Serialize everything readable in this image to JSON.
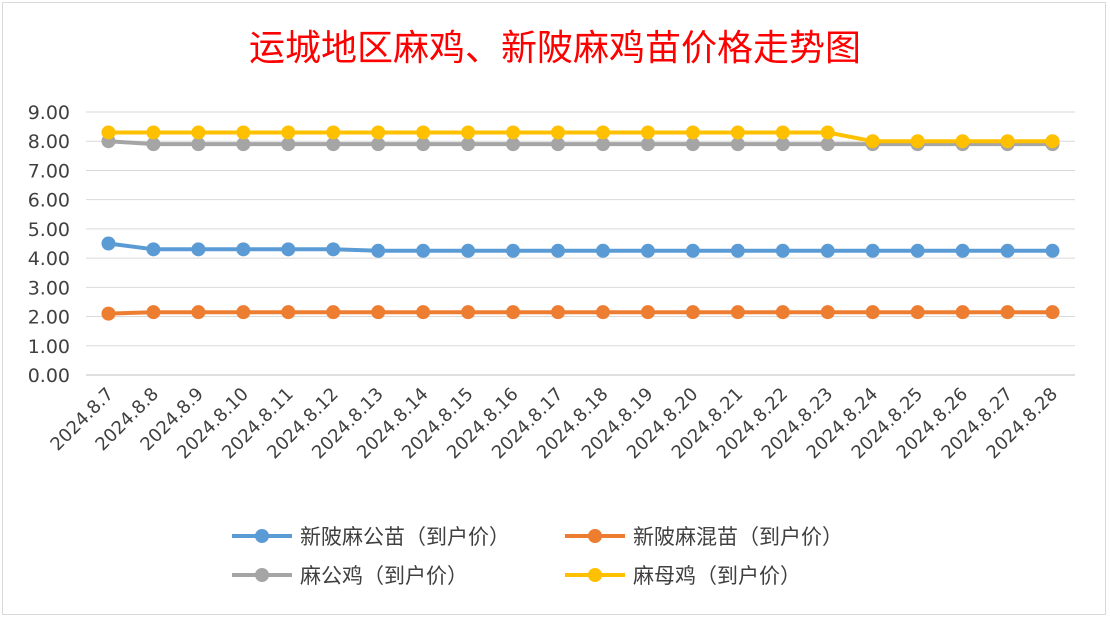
{
  "chart_data": {
    "type": "line",
    "title": "运城地区麻鸡、新陂麻鸡苗价格走势图",
    "xlabel": "",
    "ylabel": "",
    "ylim": [
      0,
      9
    ],
    "ytick_step": 1,
    "ytick_format": "0.00",
    "grid": true,
    "legend_position": "bottom",
    "categories": [
      "2024.8.7",
      "2024.8.8",
      "2024.8.9",
      "2024.8.10",
      "2024.8.11",
      "2024.8.12",
      "2024.8.13",
      "2024.8.14",
      "2024.8.15",
      "2024.8.16",
      "2024.8.17",
      "2024.8.18",
      "2024.8.19",
      "2024.8.20",
      "2024.8.21",
      "2024.8.22",
      "2024.8.23",
      "2024.8.24",
      "2024.8.25",
      "2024.8.26",
      "2024.8.27",
      "2024.8.28"
    ],
    "series": [
      {
        "name": "新陂麻公苗（到户价）",
        "color": "#5b9bd5",
        "values": [
          4.5,
          4.3,
          4.3,
          4.3,
          4.3,
          4.3,
          4.25,
          4.25,
          4.25,
          4.25,
          4.25,
          4.25,
          4.25,
          4.25,
          4.25,
          4.25,
          4.25,
          4.25,
          4.25,
          4.25,
          4.25,
          4.25
        ]
      },
      {
        "name": "新陂麻混苗（到户价）",
        "color": "#ed7d31",
        "values": [
          2.1,
          2.15,
          2.15,
          2.15,
          2.15,
          2.15,
          2.15,
          2.15,
          2.15,
          2.15,
          2.15,
          2.15,
          2.15,
          2.15,
          2.15,
          2.15,
          2.15,
          2.15,
          2.15,
          2.15,
          2.15,
          2.15
        ]
      },
      {
        "name": "麻公鸡（到户价）",
        "color": "#a5a5a5",
        "values": [
          8.0,
          7.9,
          7.9,
          7.9,
          7.9,
          7.9,
          7.9,
          7.9,
          7.9,
          7.9,
          7.9,
          7.9,
          7.9,
          7.9,
          7.9,
          7.9,
          7.9,
          7.9,
          7.9,
          7.9,
          7.9,
          7.9
        ]
      },
      {
        "name": "麻母鸡（到户价）",
        "color": "#ffc000",
        "values": [
          8.3,
          8.3,
          8.3,
          8.3,
          8.3,
          8.3,
          8.3,
          8.3,
          8.3,
          8.3,
          8.3,
          8.3,
          8.3,
          8.3,
          8.3,
          8.3,
          8.3,
          8.0,
          8.0,
          8.0,
          8.0,
          8.0
        ]
      }
    ]
  }
}
